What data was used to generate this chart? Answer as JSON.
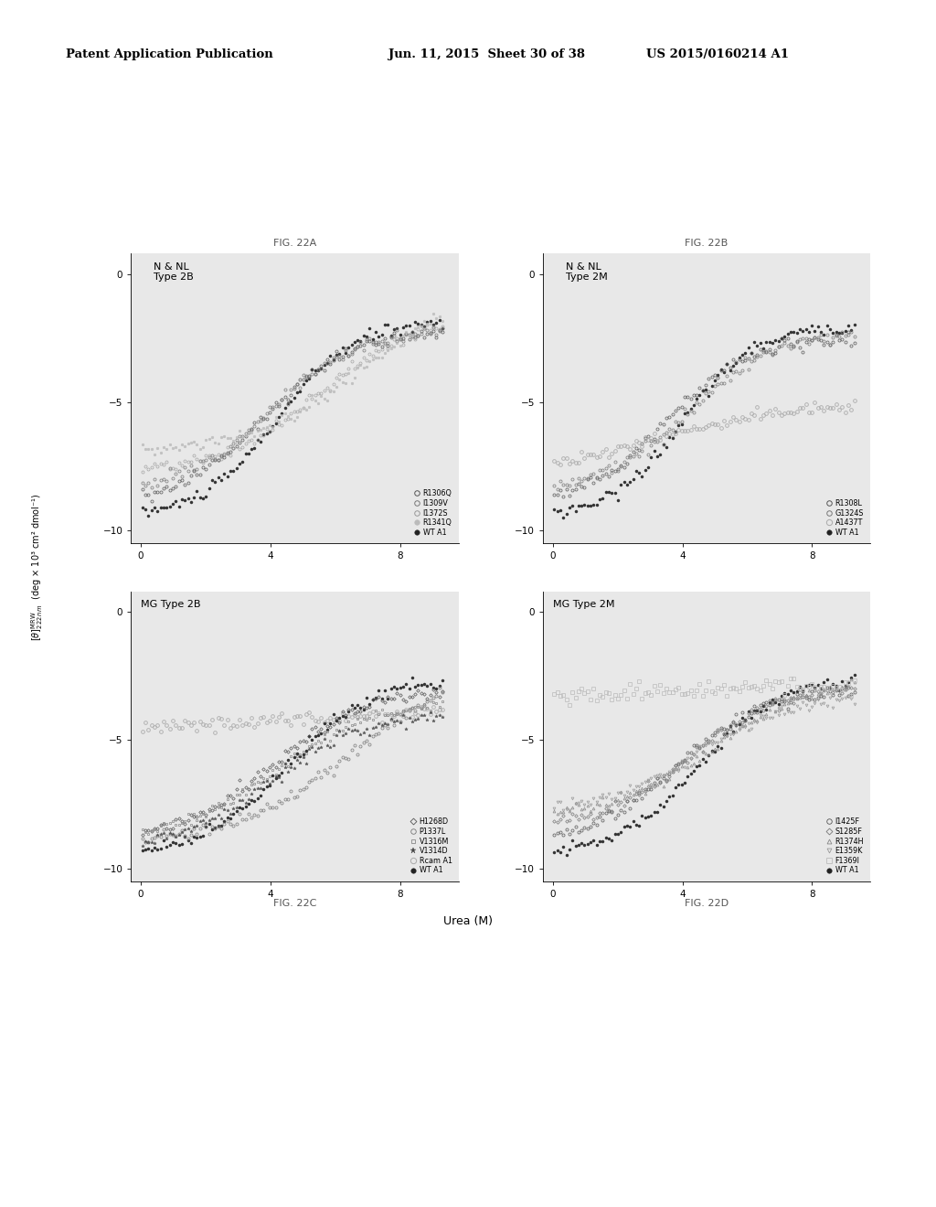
{
  "header_left": "Patent Application Publication",
  "header_mid": "Jun. 11, 2015  Sheet 30 of 38",
  "header_right": "US 2015/0160214 A1",
  "legends": {
    "A": [
      "R1306Q",
      "I1309V",
      "I1372S",
      "R1341Q",
      "WT A1"
    ],
    "B": [
      "R1308L",
      "G1324S",
      "A1437T",
      "WT A1"
    ],
    "C": [
      "H1268D",
      "P1337L",
      "V1316M",
      "V1314D",
      "Rcam A1",
      "WT A1"
    ],
    "D": [
      "I1425F",
      "S1285F",
      "R1374H",
      "E1359K",
      "F1369I",
      "WT A1"
    ]
  },
  "background": "#ffffff",
  "plot_bg": "#e8e8e8"
}
